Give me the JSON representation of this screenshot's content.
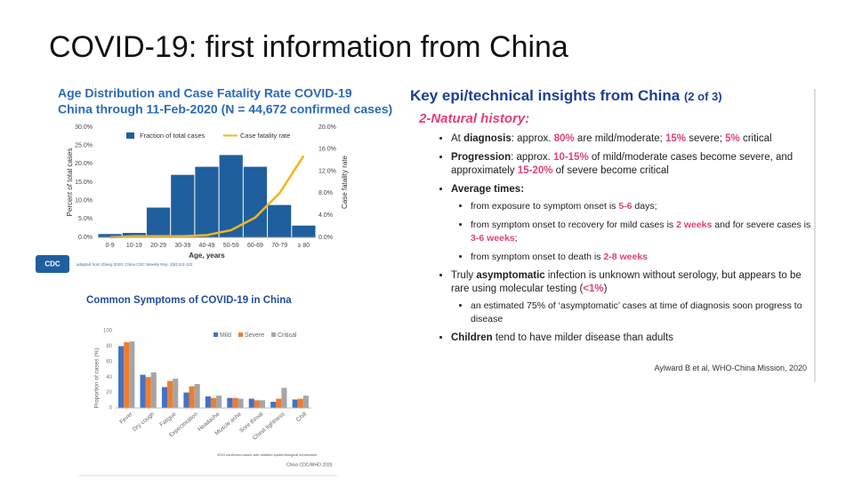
{
  "slide_title": "COVID-19: first information from China",
  "chart_data": [
    {
      "type": "bar",
      "title": [
        "Age Distribution and Case Fatality Rate COVID-19",
        "China through 11-Feb-2020 (N = 44,672 confirmed cases)"
      ],
      "categories": [
        "0-9",
        "10-19",
        "20-29",
        "30-39",
        "40-49",
        "50-59",
        "60-69",
        "70-79",
        "≥ 80"
      ],
      "series": [
        {
          "name": "Fraction of total cases",
          "type": "bar",
          "color": "#1f5f9e",
          "values": [
            0.9,
            1.2,
            8.1,
            17.0,
            19.2,
            22.4,
            19.2,
            8.8,
            3.2
          ]
        },
        {
          "name": "Case fatality rate",
          "type": "line",
          "axis": "y2",
          "color": "#f2b71d",
          "values": [
            0,
            0.2,
            0.2,
            0.2,
            0.4,
            1.3,
            3.6,
            8.0,
            14.8
          ]
        }
      ],
      "xlabel": "Age, years",
      "ylabel": "Percent of total cases",
      "y2label": "Case fatality rate",
      "ylim": [
        0,
        30
      ],
      "yticks": [
        {
          "value": 0,
          "label": "0.0%"
        },
        {
          "value": 5,
          "label": "5.0%"
        },
        {
          "value": 10,
          "label": "10.0%"
        },
        {
          "value": 15,
          "label": "15.0%"
        },
        {
          "value": 20,
          "label": "20.0%"
        },
        {
          "value": 25,
          "label": "25.0%"
        },
        {
          "value": 30,
          "label": "30.0%"
        }
      ],
      "y2lim": [
        0,
        20
      ],
      "y2ticks": [
        {
          "value": 0,
          "label": "0.0%"
        },
        {
          "value": 4,
          "label": "4.0%"
        },
        {
          "value": 8,
          "label": "8.0%"
        },
        {
          "value": 12,
          "label": "12.0%"
        },
        {
          "value": 16,
          "label": "16.0%"
        },
        {
          "value": 20,
          "label": "20.0%"
        }
      ],
      "logo": "CDC",
      "source": "adapted from Zhang 2020, China CDC Weekly Rep. 2(8):113-122"
    },
    {
      "type": "grouped_bar",
      "title": "Common Symptoms of COVID-19 in China",
      "categories": [
        "Fever",
        "Dry cough",
        "Fatigue",
        "Expectoration",
        "Headache",
        "Muscle ache",
        "Sore throat",
        "Chest tightness",
        "Chill"
      ],
      "series": [
        {
          "name": "Mild",
          "color": "#4472c4",
          "values": [
            80,
            43,
            27,
            20,
            15,
            13,
            12,
            8,
            11
          ]
        },
        {
          "name": "Severe",
          "color": "#ed7d31",
          "values": [
            85,
            40,
            35,
            28,
            13,
            13,
            10,
            12,
            12
          ]
        },
        {
          "name": "Critical",
          "color": "#a5a5a5",
          "values": [
            86,
            46,
            38,
            31,
            16,
            12,
            10,
            26,
            16
          ]
        }
      ],
      "ylabel": "Proportion of cases (%)",
      "ylim": [
        0,
        100
      ],
      "yticks": [
        0,
        20,
        40,
        60,
        80,
        100
      ],
      "notes": [
        "2019 confirmed cases with detailed epidemiological information",
        "China CDC/WHO 2020"
      ]
    }
  ],
  "insights": {
    "heading": "Key epi/technical insights from China",
    "part": "(2 of 3)",
    "subheading": "2-Natural history:",
    "bullets": [
      {
        "runs": [
          {
            "text": "At ",
            "style": "plain"
          },
          {
            "text": "diagnosis",
            "style": "bold"
          },
          {
            "text": ": approx. ",
            "style": "plain"
          },
          {
            "text": "80%",
            "style": "pink"
          },
          {
            "text": " are mild/moderate; ",
            "style": "plain"
          },
          {
            "text": "15%",
            "style": "pink"
          },
          {
            "text": " severe; ",
            "style": "plain"
          },
          {
            "text": "5%",
            "style": "pink"
          },
          {
            "text": " critical",
            "style": "plain"
          }
        ]
      },
      {
        "runs": [
          {
            "text": "Progression",
            "style": "bold"
          },
          {
            "text": ": approx. ",
            "style": "plain"
          },
          {
            "text": "10-15%",
            "style": "pink"
          },
          {
            "text": " of mild/moderate cases become severe, and approximately ",
            "style": "plain"
          },
          {
            "text": "15-20%",
            "style": "pink"
          },
          {
            "text": " of severe become critical",
            "style": "plain"
          }
        ]
      },
      {
        "runs": [
          {
            "text": "Average times:",
            "style": "bold"
          }
        ],
        "sub": [
          {
            "runs": [
              {
                "text": "from exposure to symptom onset is ",
                "style": "plain"
              },
              {
                "text": "5-6",
                "style": "pink"
              },
              {
                "text": " days;",
                "style": "plain"
              }
            ]
          },
          {
            "runs": [
              {
                "text": "from symptom onset to recovery for mild cases is ",
                "style": "plain"
              },
              {
                "text": "2 weeks",
                "style": "pink"
              },
              {
                "text": " and for severe cases is ",
                "style": "plain"
              },
              {
                "text": "3-6 weeks",
                "style": "pink"
              },
              {
                "text": ";",
                "style": "plain"
              }
            ]
          },
          {
            "runs": [
              {
                "text": "from symptom onset to death is ",
                "style": "plain"
              },
              {
                "text": "2-8 weeks",
                "style": "pink"
              }
            ]
          }
        ]
      },
      {
        "runs": [
          {
            "text": "Truly ",
            "style": "plain"
          },
          {
            "text": "asymptomatic",
            "style": "bold"
          },
          {
            "text": " infection is unknown without serology, but appears to be rare using molecular testing (",
            "style": "plain"
          },
          {
            "text": "<1%",
            "style": "pink"
          },
          {
            "text": ")",
            "style": "plain"
          }
        ],
        "sub": [
          {
            "runs": [
              {
                "text": "an estimated 75% of ‘asymptomatic’ cases at time of diagnosis soon progress to disease",
                "style": "plain"
              }
            ]
          }
        ]
      },
      {
        "runs": [
          {
            "text": "Children",
            "style": "bold"
          },
          {
            "text": " tend to have milder disease than adults",
            "style": "plain"
          }
        ]
      }
    ],
    "citation": "Aylward B et al, WHO-China Mission, 2020"
  }
}
